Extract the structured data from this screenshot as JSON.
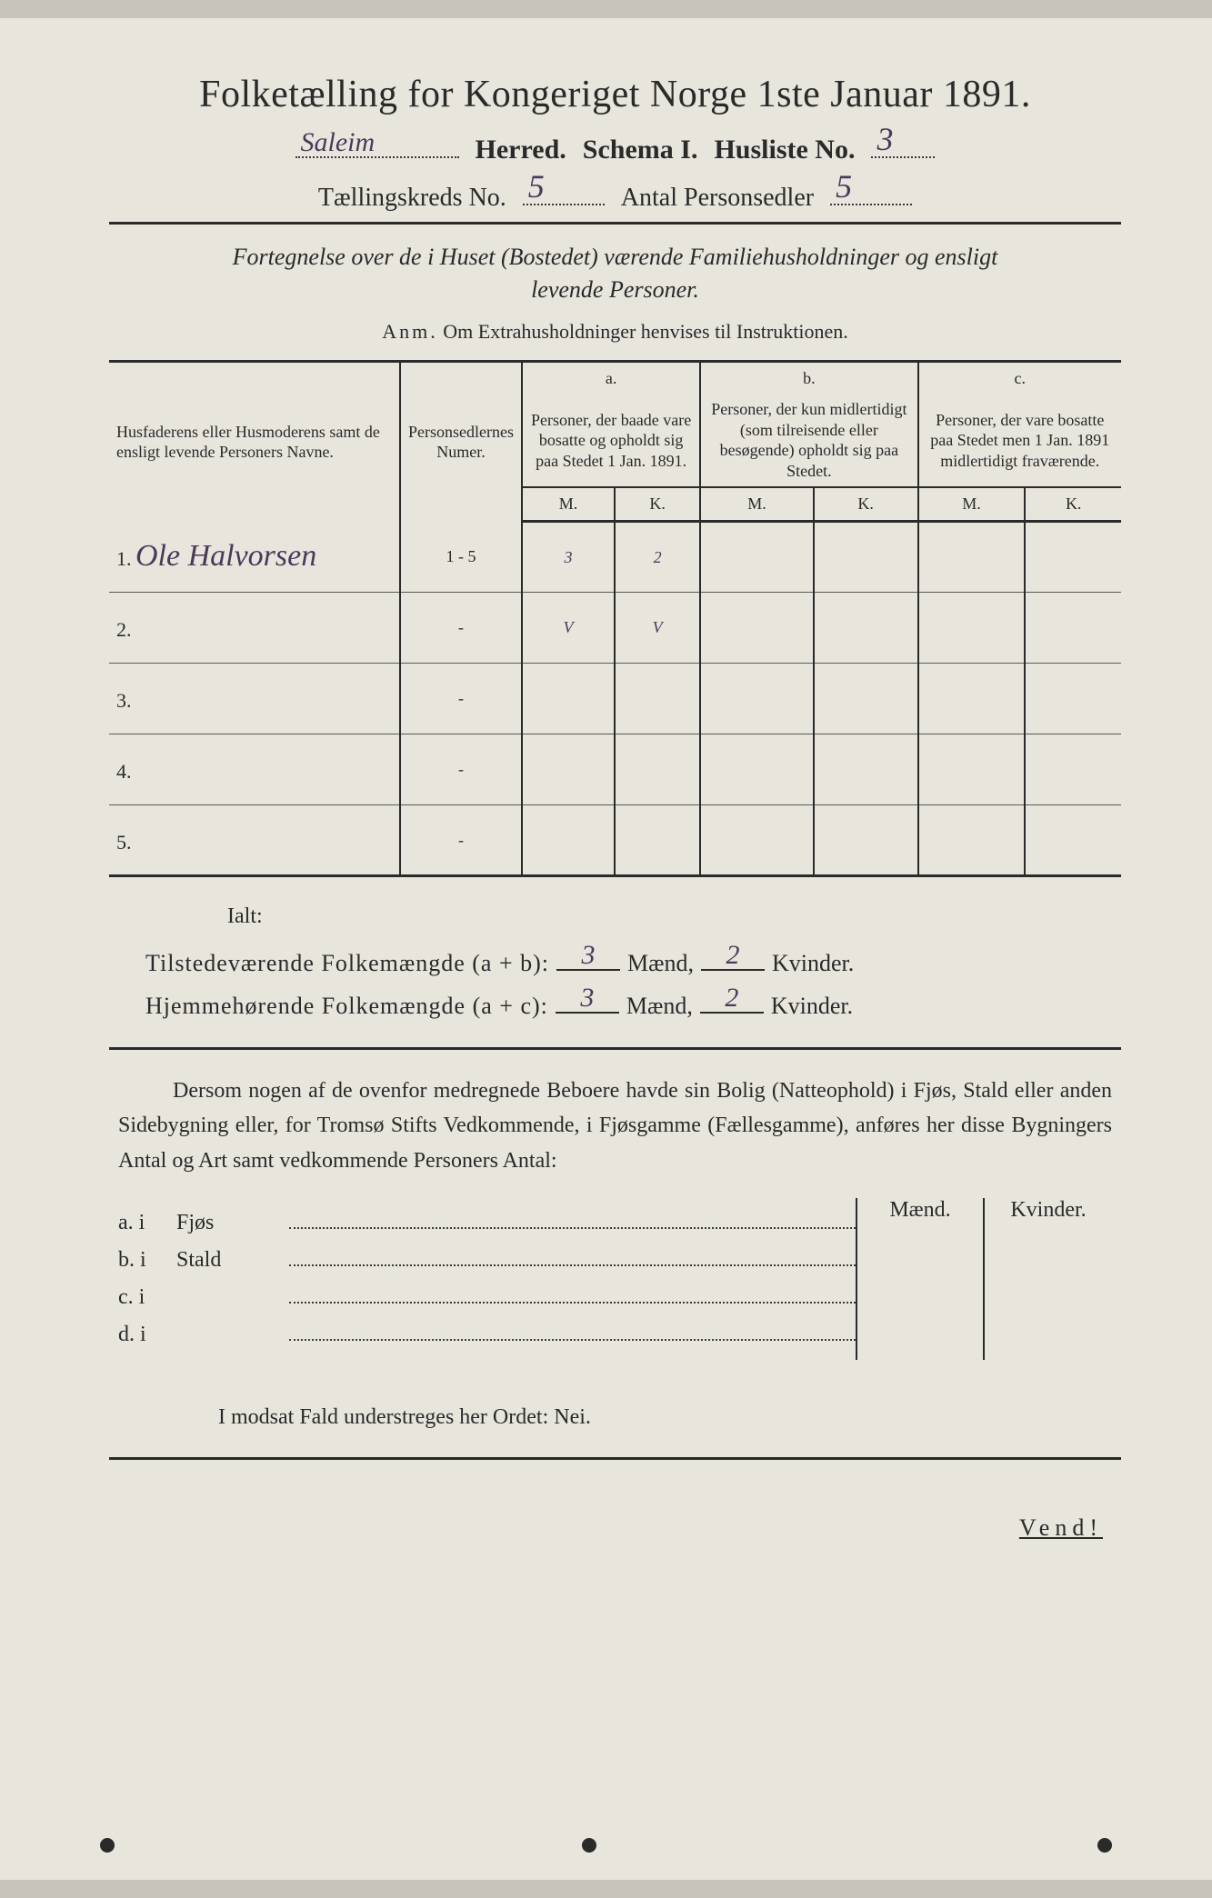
{
  "title": "Folketælling for Kongeriget Norge 1ste Januar 1891.",
  "header": {
    "herred_value": "Saleim",
    "herred_label": "Herred.",
    "schema_label": "Schema I.",
    "husliste_label": "Husliste No.",
    "husliste_value": "3",
    "kreds_label": "Tællingskreds No.",
    "kreds_value": "5",
    "antal_label": "Antal Personsedler",
    "antal_value": "5"
  },
  "subtitle_line1": "Fortegnelse over de i Huset (Bostedet) værende Familiehusholdninger og ensligt",
  "subtitle_line2": "levende Personer.",
  "anm": {
    "label": "Anm.",
    "text": "Om Extrahusholdninger henvises til Instruktionen."
  },
  "table": {
    "col_name": "Husfaderens eller Husmoderens samt de ensligt levende Personers Navne.",
    "col_num": "Personsedlernes Numer.",
    "col_a_letter": "a.",
    "col_a": "Personer, der baade vare bosatte og opholdt sig paa Stedet 1 Jan. 1891.",
    "col_b_letter": "b.",
    "col_b": "Personer, der kun midlertidigt (som tilreisende eller besøgende) opholdt sig paa Stedet.",
    "col_c_letter": "c.",
    "col_c": "Personer, der vare bosatte paa Stedet men 1 Jan. 1891 midlertidigt fraværende.",
    "m": "M.",
    "k": "K.",
    "rows": [
      {
        "n": "1.",
        "name": "Ole Halvorsen",
        "num": "1 - 5",
        "am": "3",
        "ak": "2",
        "bm": "",
        "bk": "",
        "cm": "",
        "ck": ""
      },
      {
        "n": "2.",
        "name": "",
        "num": "-",
        "am": "V",
        "ak": "V",
        "bm": "",
        "bk": "",
        "cm": "",
        "ck": ""
      },
      {
        "n": "3.",
        "name": "",
        "num": "-",
        "am": "",
        "ak": "",
        "bm": "",
        "bk": "",
        "cm": "",
        "ck": ""
      },
      {
        "n": "4.",
        "name": "",
        "num": "-",
        "am": "",
        "ak": "",
        "bm": "",
        "bk": "",
        "cm": "",
        "ck": ""
      },
      {
        "n": "5.",
        "name": "",
        "num": "-",
        "am": "",
        "ak": "",
        "bm": "",
        "bk": "",
        "cm": "",
        "ck": ""
      }
    ]
  },
  "ialt": "Ialt:",
  "totals": {
    "line1_label": "Tilstedeværende Folkemængde (a + b):",
    "line2_label": "Hjemmehørende Folkemængde (a + c):",
    "maend": "Mænd,",
    "kvinder": "Kvinder.",
    "l1_m": "3",
    "l1_k": "2",
    "l2_m": "3",
    "l2_k": "2"
  },
  "para": "Dersom nogen af de ovenfor medregnede Beboere havde sin Bolig (Natteophold) i Fjøs, Stald eller anden Sidebygning eller, for Tromsø Stifts Vedkommende, i Fjøsgamme (Fællesgamme), anføres her disse Bygningers Antal og Art samt vedkommende Personers Antal:",
  "bottom": {
    "maend": "Mænd.",
    "kvinder": "Kvinder.",
    "rows": [
      {
        "lab": "a.  i",
        "txt": "Fjøs"
      },
      {
        "lab": "b.  i",
        "txt": "Stald"
      },
      {
        "lab": "c.  i",
        "txt": ""
      },
      {
        "lab": "d.  i",
        "txt": ""
      }
    ]
  },
  "nei": "I modsat Fald understreges her Ordet: Nei.",
  "vend": "Vend!"
}
